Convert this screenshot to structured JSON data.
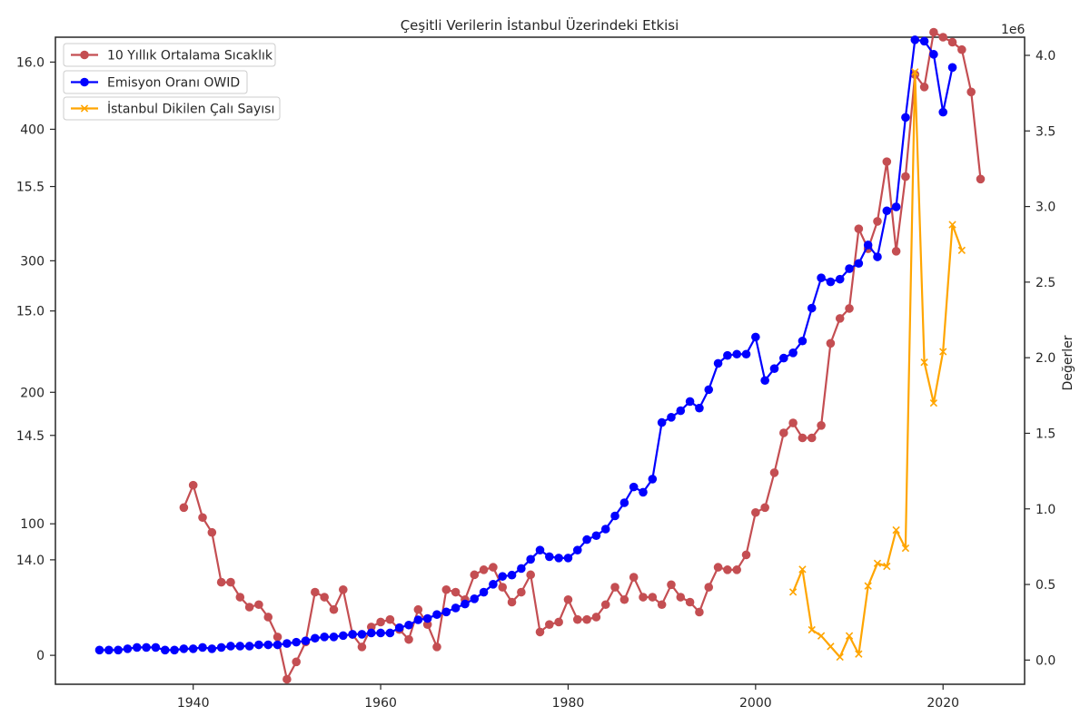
{
  "chart_data": {
    "type": "line",
    "title": "Çeşitli Verilerin İstanbul Üzerindeki Etkisi",
    "xlabel": "",
    "ylabel": "",
    "right_ylabel": "Değerler",
    "right_axis_multiplier": "1e6",
    "x_ticks": [
      "1940",
      "1960",
      "1980",
      "2000",
      "2020"
    ],
    "left_y_ticks": [
      "0",
      "14.0",
      "100",
      "14.5",
      "200",
      "15.0",
      "300",
      "15.5",
      "400",
      "16.0"
    ],
    "right_y_ticks": [
      "0.0",
      "0.5",
      "1.0",
      "1.5",
      "2.0",
      "2.5",
      "3.0",
      "3.5",
      "4.0"
    ],
    "grid": false,
    "legend_position": "top-left",
    "series": [
      {
        "name": "10 Yıllık Ortalama Sıcaklık",
        "color": "#c44e52",
        "marker": "circle",
        "axis": "left-temperature",
        "ylim": [
          13.5,
          16.1
        ],
        "x": [
          1939,
          1940,
          1941,
          1942,
          1943,
          1944,
          1945,
          1946,
          1947,
          1948,
          1949,
          1950,
          1951,
          1952,
          1953,
          1954,
          1955,
          1956,
          1957,
          1958,
          1959,
          1960,
          1961,
          1962,
          1963,
          1964,
          1965,
          1966,
          1967,
          1968,
          1969,
          1970,
          1971,
          1972,
          1973,
          1974,
          1975,
          1976,
          1977,
          1978,
          1979,
          1980,
          1981,
          1982,
          1983,
          1984,
          1985,
          1986,
          1987,
          1988,
          1989,
          1990,
          1991,
          1992,
          1993,
          1994,
          1995,
          1996,
          1997,
          1998,
          1999,
          2000,
          2001,
          2002,
          2003,
          2004,
          2005,
          2006,
          2007,
          2008,
          2009,
          2010,
          2011,
          2012,
          2013,
          2014,
          2015,
          2016,
          2017,
          2018,
          2019,
          2020,
          2021,
          2022,
          2023,
          2024
        ],
        "values": [
          14.21,
          14.3,
          14.17,
          14.11,
          13.91,
          13.91,
          13.85,
          13.81,
          13.82,
          13.77,
          13.69,
          13.52,
          13.59,
          13.67,
          13.87,
          13.85,
          13.8,
          13.88,
          13.7,
          13.65,
          13.73,
          13.75,
          13.76,
          13.72,
          13.68,
          13.8,
          13.74,
          13.65,
          13.88,
          13.87,
          13.84,
          13.94,
          13.96,
          13.97,
          13.89,
          13.83,
          13.87,
          13.94,
          13.71,
          13.74,
          13.75,
          13.84,
          13.76,
          13.76,
          13.77,
          13.82,
          13.89,
          13.84,
          13.93,
          13.85,
          13.85,
          13.82,
          13.9,
          13.85,
          13.83,
          13.79,
          13.89,
          13.97,
          13.96,
          13.96,
          14.02,
          14.19,
          14.21,
          14.35,
          14.51,
          14.55,
          14.49,
          14.49,
          14.54,
          14.87,
          14.97,
          15.01,
          15.33,
          15.25,
          15.36,
          15.6,
          15.24,
          15.54,
          15.95,
          15.9,
          16.12,
          16.1,
          16.08,
          16.05,
          15.88,
          15.53
        ]
      },
      {
        "name": "Emisyon Oranı OWID",
        "color": "#0000ff",
        "marker": "circle",
        "axis": "left-emission",
        "ylim": [
          -22,
          470
        ],
        "x": [
          1930,
          1931,
          1932,
          1933,
          1934,
          1935,
          1936,
          1937,
          1938,
          1939,
          1940,
          1941,
          1942,
          1943,
          1944,
          1945,
          1946,
          1947,
          1948,
          1949,
          1950,
          1951,
          1952,
          1953,
          1954,
          1955,
          1956,
          1957,
          1958,
          1959,
          1960,
          1961,
          1962,
          1963,
          1964,
          1965,
          1966,
          1967,
          1968,
          1969,
          1970,
          1971,
          1972,
          1973,
          1974,
          1975,
          1976,
          1977,
          1978,
          1979,
          1980,
          1981,
          1982,
          1983,
          1984,
          1985,
          1986,
          1987,
          1988,
          1989,
          1990,
          1991,
          1992,
          1993,
          1994,
          1995,
          1996,
          1997,
          1998,
          1999,
          2000,
          2001,
          2002,
          2003,
          2004,
          2005,
          2006,
          2007,
          2008,
          2009,
          2010,
          2011,
          2012,
          2013,
          2014,
          2015,
          2016,
          2017,
          2018,
          2019,
          2020,
          2021
        ],
        "values": [
          4,
          4,
          4,
          5,
          6,
          6,
          6,
          4,
          4,
          5,
          5,
          6,
          5,
          6,
          7,
          7,
          7,
          8,
          8,
          8,
          9,
          10,
          11,
          13,
          14,
          14,
          15,
          16,
          16,
          17,
          17,
          17,
          21,
          23,
          27,
          28,
          31,
          33,
          36,
          39,
          43,
          48,
          54,
          60,
          61,
          66,
          73,
          80,
          75,
          74,
          74,
          80,
          88,
          91,
          96,
          106,
          116,
          128,
          124,
          134,
          177,
          181,
          186,
          193,
          188,
          202,
          222,
          228,
          229,
          229,
          242,
          209,
          218,
          226,
          230,
          239,
          264,
          287,
          284,
          286,
          294,
          298,
          312,
          303,
          338,
          341,
          409,
          468,
          467,
          457,
          413,
          447
        ]
      },
      {
        "name": "İstanbul Dikilen Çalı Sayısı",
        "color": "#ffa500",
        "marker": "x",
        "axis": "right",
        "ylim": [
          -160000,
          4120000
        ],
        "x": [
          2004,
          2005,
          2006,
          2007,
          2008,
          2009,
          2010,
          2011,
          2012,
          2013,
          2014,
          2015,
          2016,
          2017,
          2018,
          2019,
          2020,
          2021,
          2022
        ],
        "values": [
          450000,
          600000,
          200000,
          160000,
          90000,
          20000,
          160000,
          40000,
          490000,
          640000,
          620000,
          860000,
          740000,
          3890000,
          1970000,
          1700000,
          2040000,
          2880000,
          2710000
        ]
      }
    ]
  }
}
